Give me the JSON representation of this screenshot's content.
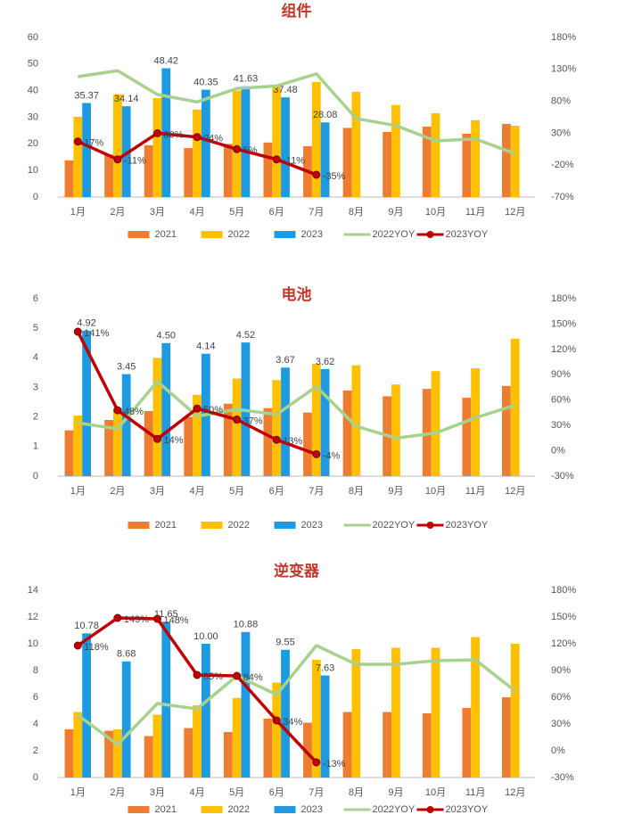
{
  "chart_data": [
    {
      "type": "bar",
      "title": "组件",
      "categories": [
        "1月",
        "2月",
        "3月",
        "4月",
        "5月",
        "6月",
        "7月",
        "8月",
        "9月",
        "10月",
        "11月",
        "12月"
      ],
      "ylim": [
        0,
        60
      ],
      "yticks": [
        0,
        10,
        20,
        30,
        40,
        50,
        60
      ],
      "y2lim": [
        -70,
        180
      ],
      "y2ticks": [
        {
          "value": -70,
          "label": "-70%"
        },
        {
          "value": -20,
          "label": "-20%"
        },
        {
          "value": 30,
          "label": "30%"
        },
        {
          "value": 80,
          "label": "80%"
        },
        {
          "value": 130,
          "label": "130%"
        },
        {
          "value": 180,
          "label": "180%"
        }
      ],
      "series": [
        {
          "name": "2021",
          "color": "#ed7d31",
          "values": [
            13.8,
            16,
            19.5,
            18.4,
            20,
            20.5,
            19.1,
            26,
            24.5,
            26.5,
            23.8,
            27.5
          ]
        },
        {
          "name": "2022",
          "color": "#ffc000",
          "values": [
            30.2,
            38.6,
            37.2,
            32.9,
            40,
            41.3,
            43.3,
            39.6,
            34.6,
            31.5,
            28.9,
            26.8
          ]
        },
        {
          "name": "2023",
          "color": "#1e9be0",
          "values": [
            35.37,
            34.14,
            48.42,
            40.35,
            41.63,
            37.48,
            28.08,
            null,
            null,
            null,
            null,
            null
          ]
        },
        {
          "name": "2022YOY",
          "type": "line",
          "axis": "y2",
          "color": "#a9d18e",
          "values": [
            118.5,
            128,
            90.6,
            79,
            100,
            104,
            123,
            53,
            42,
            18,
            21,
            -2
          ]
        },
        {
          "name": "2023YOY",
          "type": "line",
          "axis": "y2",
          "color": "#c00000",
          "markers": true,
          "values": [
            17,
            -11,
            30,
            24,
            5,
            -11,
            -35,
            null,
            null,
            null,
            null,
            null
          ],
          "value_labels": [
            "17%",
            "-11%",
            "30%",
            "24%",
            "5%",
            "-11%",
            "-35%",
            null,
            null,
            null,
            null,
            null
          ]
        }
      ]
    },
    {
      "type": "bar",
      "title": "电池",
      "categories": [
        "1月",
        "2月",
        "3月",
        "4月",
        "5月",
        "6月",
        "7月",
        "8月",
        "9月",
        "10月",
        "11月",
        "12月"
      ],
      "ylim": [
        0,
        6
      ],
      "yticks": [
        0,
        1,
        2,
        3,
        4,
        5,
        6
      ],
      "y2lim": [
        -30,
        180
      ],
      "y2ticks": [
        {
          "value": -30,
          "label": "-30%"
        },
        {
          "value": 0,
          "label": "0%"
        },
        {
          "value": 30,
          "label": "30%"
        },
        {
          "value": 60,
          "label": "60%"
        },
        {
          "value": 90,
          "label": "90%"
        },
        {
          "value": 120,
          "label": "120%"
        },
        {
          "value": 150,
          "label": "150%"
        },
        {
          "value": 180,
          "label": "180%"
        }
      ],
      "series": [
        {
          "name": "2021",
          "color": "#ed7d31",
          "values": [
            1.55,
            1.9,
            2.2,
            2.0,
            2.45,
            2.3,
            2.15,
            2.9,
            2.7,
            2.95,
            2.65,
            3.05
          ]
        },
        {
          "name": "2022",
          "color": "#ffc000",
          "values": [
            2.05,
            2.3,
            4.0,
            2.75,
            3.3,
            3.25,
            3.8,
            3.75,
            3.1,
            3.55,
            3.65,
            4.65
          ]
        },
        {
          "name": "2023",
          "color": "#1e9be0",
          "values": [
            4.92,
            3.45,
            4.5,
            4.14,
            4.52,
            3.67,
            3.62,
            null,
            null,
            null,
            null,
            null
          ],
          "value_labels": [
            "4.92",
            "3.45",
            "4.50",
            "4.14",
            "4.52",
            "3.67",
            "3.62",
            null,
            null,
            null,
            null,
            null
          ]
        },
        {
          "name": "2022YOY",
          "type": "line",
          "axis": "y2",
          "color": "#a9d18e",
          "values": [
            33,
            26,
            82,
            41,
            49,
            43,
            76,
            29,
            15,
            21,
            39,
            54
          ]
        },
        {
          "name": "2023YOY",
          "type": "line",
          "axis": "y2",
          "color": "#c00000",
          "markers": true,
          "values": [
            141,
            48,
            14,
            50,
            37,
            13,
            -4,
            null,
            null,
            null,
            null,
            null
          ],
          "value_labels": [
            "141%",
            "48%",
            "14%",
            "50%",
            "37%",
            "13%",
            "-4%",
            null,
            null,
            null,
            null,
            null
          ]
        }
      ]
    },
    {
      "type": "bar",
      "title": "逆变器",
      "categories": [
        "1月",
        "2月",
        "3月",
        "4月",
        "5月",
        "6月",
        "7月",
        "8月",
        "9月",
        "10月",
        "11月",
        "12月"
      ],
      "ylim": [
        0,
        14
      ],
      "yticks": [
        0,
        2,
        4,
        6,
        8,
        10,
        12,
        14
      ],
      "y2lim": [
        -30,
        180
      ],
      "y2ticks": [
        {
          "value": -30,
          "label": "-30%"
        },
        {
          "value": 0,
          "label": "0%"
        },
        {
          "value": 30,
          "label": "30%"
        },
        {
          "value": 60,
          "label": "60%"
        },
        {
          "value": 90,
          "label": "90%"
        },
        {
          "value": 120,
          "label": "120%"
        },
        {
          "value": 150,
          "label": "150%"
        },
        {
          "value": 180,
          "label": "180%"
        }
      ],
      "series": [
        {
          "name": "2021",
          "color": "#ed7d31",
          "values": [
            3.6,
            3.5,
            3.1,
            3.7,
            3.4,
            4.4,
            4.1,
            4.9,
            4.9,
            4.8,
            5.2,
            6.0
          ]
        },
        {
          "name": "2022",
          "color": "#ffc000",
          "values": [
            4.9,
            3.6,
            4.7,
            5.4,
            5.95,
            7.1,
            8.8,
            9.6,
            9.7,
            9.7,
            10.5,
            10.0
          ]
        },
        {
          "name": "2023",
          "color": "#1e9be0",
          "values": [
            10.78,
            8.68,
            11.65,
            10,
            10.88,
            9.55,
            7.63,
            null,
            null,
            null,
            null,
            null
          ],
          "value_labels": [
            "10.78",
            "8.68",
            "11.65",
            "10.00",
            "10.88",
            "9.55",
            "7.63",
            null,
            null,
            null,
            null,
            null
          ]
        },
        {
          "name": "2022YOY",
          "type": "line",
          "axis": "y2",
          "color": "#a9d18e",
          "values": [
            40,
            7,
            53,
            47,
            84,
            63,
            118,
            97,
            97,
            101,
            102,
            67
          ]
        },
        {
          "name": "2023YOY",
          "type": "line",
          "axis": "y2",
          "color": "#c00000",
          "markers": true,
          "values": [
            118,
            149,
            148,
            85,
            84,
            34,
            -13,
            null,
            null,
            null,
            null,
            null
          ],
          "value_labels": [
            "118%",
            "149%",
            "148%",
            "85%",
            "84%",
            "34%",
            "-13%",
            null,
            null,
            null,
            null,
            null
          ]
        }
      ]
    }
  ]
}
